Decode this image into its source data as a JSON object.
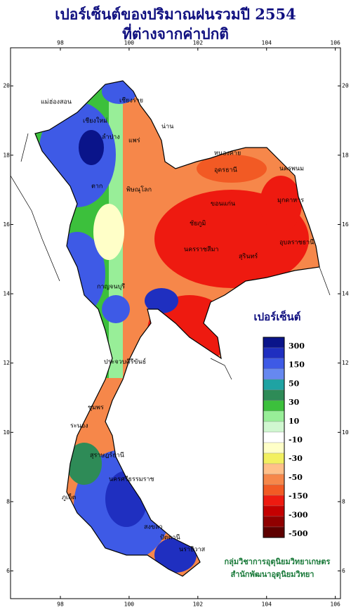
{
  "header": {
    "title_line1": "เปอร์เซ็นต์ของปริมาณฝนรวมปี 2554",
    "title_line2": "ที่ต่างจากค่าปกติ"
  },
  "map": {
    "xlim": [
      96.55,
      106.15
    ],
    "ylim": [
      5.2,
      21.1
    ],
    "xticks": [
      98,
      100,
      102,
      104,
      106
    ],
    "yticks": [
      6,
      8,
      10,
      12,
      14,
      16,
      18,
      20
    ]
  },
  "provinces": [
    "เชียงราย",
    "แม่ฮ่องสอน",
    "เชียงใหม่",
    "ลำปาง",
    "น่าน",
    "แพร่",
    "ตาก",
    "พิษณุโลก",
    "หนองคาย",
    "อุดรธานี",
    "นครพนม",
    "มุกดาหาร",
    "ขอนแก่น",
    "ชัยภูมิ",
    "นครราชสีมา",
    "อุบลราชธานี",
    "สุรินทร์",
    "กาญจนบุรี",
    "ประจวบคีรีขันธ์",
    "ชุมพร",
    "ระนอง",
    "สุราษฎร์ธานี",
    "นครศรีธรรมราช",
    "ภูเก็ต",
    "สงขลา",
    "ปัตตานี",
    "นราธิวาส"
  ],
  "legend": {
    "title": "เปอร์เซ็นต์",
    "colors": [
      "#0a148a",
      "#1f2fc0",
      "#3e5ae6",
      "#6688f0",
      "#1fa3a3",
      "#2e8b57",
      "#3cc03c",
      "#98ee98",
      "#d0f7d0",
      "#ffffff",
      "#ffffc8",
      "#f2f060",
      "#ffc08a",
      "#f6874a",
      "#f25a24",
      "#ee1a10",
      "#c40000",
      "#900000",
      "#5e0000"
    ],
    "labels": [
      300,
      150,
      50,
      30,
      10,
      -10,
      -30,
      -50,
      -150,
      -300,
      -500
    ]
  },
  "credit": {
    "line1": "กลุ่มวิชาการอุตุนิยมวิทยาเกษตร",
    "line2": "สำนักพัฒนาอุตุนิยมวิทยา"
  }
}
